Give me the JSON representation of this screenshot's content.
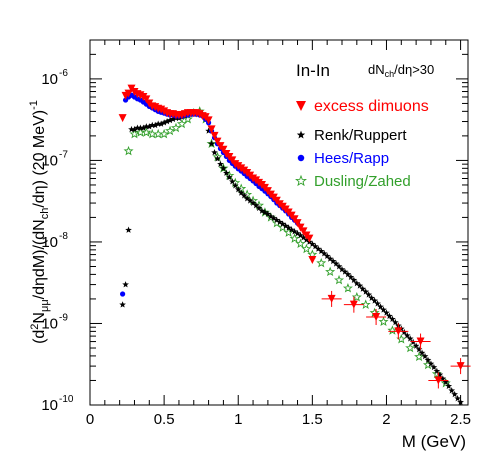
{
  "chart_data": {
    "type": "scatter",
    "title": "",
    "xlabel": "M (GeV)",
    "ylabel": "(d²N_μμ/dηdM)/(dN_ch/dη) (20 MeV)⁻¹",
    "xlim": [
      0,
      2.55
    ],
    "ylim": [
      1e-10,
      3e-06
    ],
    "yscale": "log",
    "grid": false,
    "legend_position": "top-right",
    "x_ticks": [
      0,
      0.5,
      1,
      1.5,
      2,
      2.5
    ],
    "x_tick_labels": [
      "0",
      "0.5",
      "1",
      "1.5",
      "2",
      "2.5"
    ],
    "y_ticks": [
      1e-10,
      1e-09,
      1e-08,
      1e-07,
      1e-06
    ],
    "y_tick_labels": [
      "10",
      "10",
      "10",
      "10",
      "10"
    ],
    "y_tick_exponents": [
      "-10",
      "-9",
      "-8",
      "-7",
      "-6"
    ],
    "annotations": {
      "system": "In-In",
      "cut": "dN_ch/dη>30"
    },
    "series": [
      {
        "name": "excess dimuons",
        "color": "#ff0000",
        "marker": "triangle-down",
        "x": [
          0.22,
          0.24,
          0.26,
          0.28,
          0.3,
          0.32,
          0.34,
          0.36,
          0.38,
          0.4,
          0.42,
          0.44,
          0.46,
          0.48,
          0.5,
          0.52,
          0.54,
          0.56,
          0.58,
          0.6,
          0.62,
          0.64,
          0.66,
          0.68,
          0.7,
          0.72,
          0.74,
          0.76,
          0.78,
          0.8,
          0.82,
          0.84,
          0.86,
          0.88,
          0.9,
          0.92,
          0.94,
          0.96,
          0.98,
          1.0,
          1.02,
          1.04,
          1.06,
          1.08,
          1.1,
          1.12,
          1.14,
          1.16,
          1.18,
          1.2,
          1.22,
          1.24,
          1.26,
          1.28,
          1.3,
          1.32,
          1.34,
          1.36,
          1.38,
          1.4,
          1.42,
          1.44,
          1.46,
          1.48,
          1.5,
          1.63,
          1.78,
          1.93,
          2.08,
          2.23,
          2.35,
          2.5
        ],
        "y": [
          3.3e-07,
          6.2e-07,
          6.6e-07,
          7.6e-07,
          6.9e-07,
          6.5e-07,
          6.3e-07,
          6e-07,
          5.6e-07,
          5e-07,
          4.6e-07,
          4.5e-07,
          4.3e-07,
          4.2e-07,
          4e-07,
          3.8e-07,
          3.7e-07,
          3.7e-07,
          3.6e-07,
          3.6e-07,
          3.6e-07,
          3.7e-07,
          3.8e-07,
          3.8e-07,
          3.8e-07,
          3.8e-07,
          3.7e-07,
          3.5e-07,
          3.4e-07,
          3.1e-07,
          2.4e-07,
          2e-07,
          1.7e-07,
          1.5e-07,
          1.35e-07,
          1.2e-07,
          1.1e-07,
          1e-07,
          9e-08,
          8.5e-08,
          8e-08,
          7.5e-08,
          7e-08,
          6.5e-08,
          6e-08,
          5.7e-08,
          5.3e-08,
          5e-08,
          4.6e-08,
          4.2e-08,
          3.8e-08,
          3.5e-08,
          3.2e-08,
          2.9e-08,
          2.7e-08,
          2.5e-08,
          2.3e-08,
          2.1e-08,
          1.9e-08,
          1.7e-08,
          1.5e-08,
          1.35e-08,
          1.2e-08,
          1.1e-08,
          6e-09,
          2e-09,
          1.7e-09,
          1.2e-09,
          8e-10,
          6e-10,
          2e-10,
          3e-10
        ]
      },
      {
        "name": "Renk/Ruppert",
        "color": "#000000",
        "marker": "star",
        "x": [
          0.22,
          0.24,
          0.26,
          0.28,
          0.3,
          0.32,
          0.34,
          0.36,
          0.38,
          0.4,
          0.42,
          0.44,
          0.46,
          0.48,
          0.5,
          0.52,
          0.54,
          0.56,
          0.58,
          0.6,
          0.62,
          0.64,
          0.66,
          0.68,
          0.7,
          0.72,
          0.74,
          0.76,
          0.78,
          0.8,
          0.82,
          0.84,
          0.86,
          0.88,
          0.9,
          0.92,
          0.94,
          0.96,
          0.98,
          1.0,
          1.02,
          1.04,
          1.06,
          1.08,
          1.1,
          1.12,
          1.14,
          1.16,
          1.18,
          1.2,
          1.22,
          1.24,
          1.26,
          1.28,
          1.3,
          1.32,
          1.34,
          1.36,
          1.38,
          1.4,
          1.42,
          1.44,
          1.46,
          1.48,
          1.5,
          1.52,
          1.54,
          1.56,
          1.58,
          1.6,
          1.62,
          1.64,
          1.66,
          1.68,
          1.7,
          1.72,
          1.74,
          1.76,
          1.78,
          1.8,
          1.82,
          1.84,
          1.86,
          1.88,
          1.9,
          1.92,
          1.94,
          1.96,
          1.98,
          2.0,
          2.02,
          2.04,
          2.06,
          2.08,
          2.1,
          2.12,
          2.14,
          2.16,
          2.18,
          2.2,
          2.22,
          2.24,
          2.26,
          2.28,
          2.3,
          2.32,
          2.34,
          2.36,
          2.38,
          2.4,
          2.42,
          2.44,
          2.46,
          2.48,
          2.5
        ],
        "y": [
          1.7e-09,
          3e-09,
          1.4e-08,
          2.4e-07,
          2.4e-07,
          2.5e-07,
          2.5e-07,
          2.5e-07,
          2.6e-07,
          2.6e-07,
          2.7e-07,
          2.7e-07,
          2.8e-07,
          2.8e-07,
          2.9e-07,
          3e-07,
          3.1e-07,
          3.2e-07,
          3.3e-07,
          3.3e-07,
          3.4e-07,
          3.5e-07,
          3.6e-07,
          3.7e-07,
          3.7e-07,
          3.8e-07,
          3.8e-07,
          3.7e-07,
          3.3e-07,
          2.3e-07,
          1.6e-07,
          1.25e-07,
          1.05e-07,
          9e-08,
          8e-08,
          7e-08,
          6.2e-08,
          5.5e-08,
          4.9e-08,
          4.4e-08,
          4e-08,
          3.7e-08,
          3.4e-08,
          3.2e-08,
          3e-08,
          2.8e-08,
          2.6e-08,
          2.4e-08,
          2.3e-08,
          2.2e-08,
          2.05e-08,
          1.95e-08,
          1.85e-08,
          1.75e-08,
          1.66e-08,
          1.57e-08,
          1.49e-08,
          1.41e-08,
          1.34e-08,
          1.27e-08,
          1.2e-08,
          1.13e-08,
          1.06e-08,
          1e-08,
          9.4e-09,
          8.8e-09,
          8.2e-09,
          7.7e-09,
          7.2e-09,
          6.7e-09,
          6.2e-09,
          5.8e-09,
          5.4e-09,
          5e-09,
          4.6e-09,
          4.3e-09,
          4e-09,
          3.7e-09,
          3.4e-09,
          3.1e-09,
          2.9e-09,
          2.65e-09,
          2.45e-09,
          2.25e-09,
          2.05e-09,
          1.9e-09,
          1.75e-09,
          1.6e-09,
          1.47e-09,
          1.35e-09,
          1.23e-09,
          1.13e-09,
          1.03e-09,
          9.4e-10,
          8.6e-10,
          7.8e-10,
          7.1e-10,
          6.5e-10,
          5.9e-10,
          5.3e-10,
          4.8e-10,
          4.35e-10,
          3.95e-10,
          3.55e-10,
          3.2e-10,
          2.9e-10,
          2.6e-10,
          2.35e-10,
          2.1e-10,
          1.9e-10,
          1.7e-10,
          1.5e-10,
          1.35e-10,
          1.2e-10,
          1.08e-10
        ]
      },
      {
        "name": "Hees/Rapp",
        "color": "#0000ff",
        "marker": "circle",
        "x": [
          0.22,
          0.24,
          0.26,
          0.28,
          0.3,
          0.32,
          0.34,
          0.36,
          0.38,
          0.4,
          0.42,
          0.44,
          0.46,
          0.48,
          0.5,
          0.52,
          0.54,
          0.56,
          0.58,
          0.6,
          0.62,
          0.64,
          0.66,
          0.68,
          0.7,
          0.72,
          0.74,
          0.76,
          0.78,
          0.8,
          0.82,
          0.84,
          0.86,
          0.88,
          0.9,
          0.92,
          0.94,
          0.96,
          0.98,
          1.0,
          1.02,
          1.04,
          1.06,
          1.08,
          1.1,
          1.12,
          1.14,
          1.16,
          1.18,
          1.2,
          1.22,
          1.24,
          1.26,
          1.28,
          1.3,
          1.32,
          1.34,
          1.36,
          1.38,
          1.4
        ],
        "y": [
          2.3e-09,
          5.5e-07,
          6e-07,
          6.3e-07,
          6e-07,
          5.7e-07,
          5.5e-07,
          5.2e-07,
          4.9e-07,
          4.6e-07,
          4.4e-07,
          4.2e-07,
          4e-07,
          3.9e-07,
          3.8e-07,
          3.7e-07,
          3.6e-07,
          3.6e-07,
          3.5e-07,
          3.5e-07,
          3.5e-07,
          3.6e-07,
          3.6e-07,
          3.7e-07,
          3.7e-07,
          3.7e-07,
          3.6e-07,
          3.5e-07,
          3.2e-07,
          2.9e-07,
          2.3e-07,
          1.9e-07,
          1.6e-07,
          1.4e-07,
          1.25e-07,
          1.12e-07,
          1e-07,
          9.2e-08,
          8.5e-08,
          7.9e-08,
          7.4e-08,
          6.9e-08,
          6.4e-08,
          6e-08,
          5.6e-08,
          5.2e-08,
          4.8e-08,
          4.5e-08,
          4.2e-08,
          3.9e-08,
          3.6e-08,
          3.3e-08,
          3e-08,
          2.8e-08,
          2.6e-08,
          2.4e-08,
          2.2e-08,
          2e-08,
          1.85e-08,
          1.7e-08
        ]
      },
      {
        "name": "Dusling/Zahed",
        "color": "#33a02c",
        "marker": "open-star",
        "x": [
          0.26,
          0.3,
          0.34,
          0.38,
          0.42,
          0.46,
          0.5,
          0.54,
          0.58,
          0.62,
          0.66,
          0.7,
          0.74,
          0.78,
          0.82,
          0.86,
          0.9,
          0.94,
          0.98,
          1.02,
          1.06,
          1.1,
          1.14,
          1.18,
          1.22,
          1.26,
          1.3,
          1.34,
          1.38,
          1.42,
          1.46,
          1.5,
          1.56,
          1.62,
          1.68,
          1.74,
          1.8,
          1.86,
          1.92,
          1.98,
          2.04,
          2.1,
          2.16,
          2.22,
          2.28,
          2.34,
          2.4
        ],
        "y": [
          1.3e-07,
          2.1e-07,
          2.2e-07,
          2.2e-07,
          2.1e-07,
          2.1e-07,
          2.1e-07,
          2.3e-07,
          2.5e-07,
          2.8e-07,
          3.2e-07,
          3.8e-07,
          4e-07,
          3.2e-07,
          1.6e-07,
          1.1e-07,
          8e-08,
          6.5e-08,
          5.3e-08,
          4.5e-08,
          3.8e-08,
          3.2e-08,
          2.8e-08,
          2.3e-08,
          2e-08,
          1.7e-08,
          1.5e-08,
          1.3e-08,
          1.1e-08,
          9.5e-09,
          8.2e-09,
          7e-09,
          5.5e-09,
          4.3e-09,
          3.4e-09,
          2.7e-09,
          2.1e-09,
          1.7e-09,
          1.35e-09,
          1.05e-09,
          8.2e-10,
          6.4e-10,
          5e-10,
          3.9e-10,
          3.1e-10,
          2.4e-10,
          1.85e-10
        ]
      }
    ]
  }
}
